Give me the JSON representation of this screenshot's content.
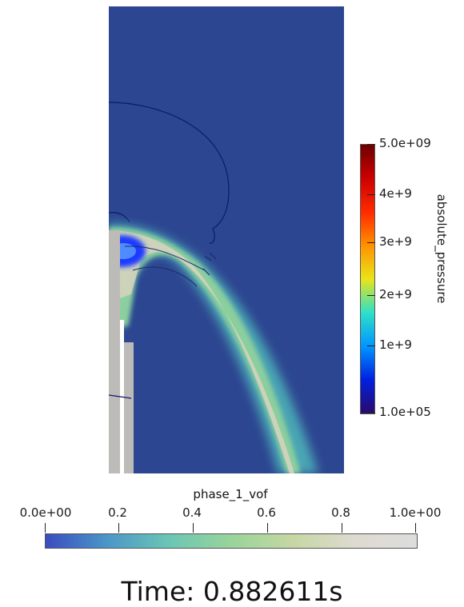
{
  "pressure_legend": {
    "title": "absolute_pressure",
    "ticks": [
      "5.0e+09",
      "4e+9",
      "3e+9",
      "2e+9",
      "1e+9",
      "1.0e+05"
    ],
    "colors": [
      "#2a0a6b",
      "#0020e0",
      "#0096ff",
      "#2fe0c8",
      "#e9e41a",
      "#ff9200",
      "#ff2a00",
      "#cd0000",
      "#6e0000"
    ]
  },
  "vof_legend": {
    "title": "phase_1_vof",
    "ticks": [
      "0.0e+00",
      "0.2",
      "0.4",
      "0.6",
      "0.8",
      "1.0e+00"
    ],
    "colors": [
      "#3b4cc0",
      "#4b97c8",
      "#6bc6b5",
      "#99d49a",
      "#c6d7a4",
      "#dedad0",
      "#dddddd"
    ]
  },
  "time_label": "Time: 0.882611s",
  "colors": {
    "domain_background": "#2d4691",
    "wall": "#bdbbb7",
    "jet_core": "#d9d4c4",
    "jet_mid": "#9fd8a2",
    "jet_outer": "#56b7ae",
    "contour": "#0a1a6e"
  }
}
